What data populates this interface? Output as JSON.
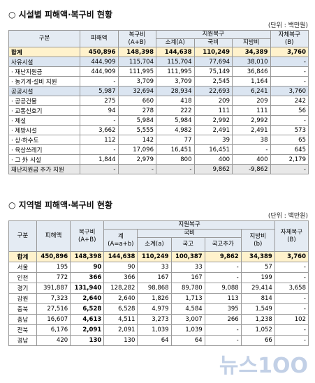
{
  "section1": {
    "title": "○ 시설별 피해액·복구비 현황",
    "unit": "(단위 : 백만원)",
    "header": {
      "category": "구분",
      "damage": "피해액",
      "recovery": "복구비",
      "recovery_sub": "(A+B)",
      "support": "지원복구",
      "subtotal": "소계(A)",
      "national": "국비",
      "local": "지방비",
      "self": "자체복구",
      "self_sub": "(B)"
    },
    "rows": [
      [
        "합계",
        "450,896",
        "148,398",
        "144,638",
        "110,249",
        "34,389",
        "3,760"
      ],
      [
        "사유시설",
        "444,909",
        "115,704",
        "115,704",
        "77,694",
        "38,010",
        "-"
      ],
      [
        "· 재난지원금",
        "444,909",
        "111,995",
        "111,995",
        "75,149",
        "36,846",
        "-"
      ],
      [
        "· 농기계·설비 지원",
        "-",
        "3,709",
        "3,709",
        "2,545",
        "1,164",
        "-"
      ],
      [
        "공공시설",
        "5,987",
        "32,694",
        "28,934",
        "22,693",
        "6,241",
        "3,760"
      ],
      [
        "· 공공건물",
        "275",
        "660",
        "418",
        "209",
        "209",
        "242"
      ],
      [
        "· 교통신호기",
        "94",
        "278",
        "222",
        "111",
        "111",
        "56"
      ],
      [
        "· 제설",
        "-",
        "5,984",
        "5,984",
        "2,992",
        "2,992",
        "-"
      ],
      [
        "· 제방시설",
        "3,662",
        "5,555",
        "4,982",
        "2,491",
        "2,491",
        "573"
      ],
      [
        "· 상·하수도",
        "112",
        "142",
        "77",
        "39",
        "38",
        "65"
      ],
      [
        "· 육상쓰레기",
        "-",
        "17,096",
        "16,451",
        "16,451",
        "-",
        "645"
      ],
      [
        "· 그 外 시설",
        "1,844",
        "2,979",
        "800",
        "400",
        "400",
        "2,179"
      ],
      [
        "재난지원금 추가 지원",
        "-",
        "-",
        "-",
        "9,862",
        "-9,862",
        "-"
      ]
    ]
  },
  "section2": {
    "title": "○ 지역별 피해액·복구비 현황",
    "unit": "(단위 : 백만원)",
    "header": {
      "category": "구분",
      "damage": "피해액",
      "recovery": "복구비",
      "recovery_sub": "(A+B)",
      "support": "지원복구",
      "total": "계",
      "total_sub": "(A=a+b)",
      "national": "국비",
      "subtotal": "소계(a)",
      "treasury": "국고",
      "treasury_extra": "국고추가",
      "local": "지방비",
      "local_sub": "(b)",
      "self": "자체복구",
      "self_sub": "(B)"
    },
    "rows": [
      [
        "합계",
        "450,896",
        "148,398",
        "144,638",
        "110,249",
        "100,387",
        "9,862",
        "34,389",
        "3,760"
      ],
      [
        "서울",
        "195",
        "90",
        "90",
        "33",
        "33",
        "-",
        "57",
        "-"
      ],
      [
        "인천",
        "772",
        "366",
        "366",
        "167",
        "167",
        "-",
        "199",
        "-"
      ],
      [
        "경기",
        "391,887",
        "131,940",
        "128,282",
        "98,868",
        "89,780",
        "9,088",
        "29,414",
        "3,658"
      ],
      [
        "강원",
        "7,323",
        "2,640",
        "2,640",
        "1,826",
        "1,713",
        "113",
        "814",
        "-"
      ],
      [
        "충북",
        "27,516",
        "6,528",
        "6,528",
        "4,979",
        "4,584",
        "395",
        "1,549",
        "-"
      ],
      [
        "충남",
        "16,607",
        "4,613",
        "4,511",
        "3,273",
        "3,007",
        "266",
        "1,238",
        "102"
      ],
      [
        "전북",
        "6,176",
        "2,091",
        "2,091",
        "1,039",
        "1,039",
        "-",
        "1,052",
        "-"
      ],
      [
        "경남",
        "420",
        "130",
        "130",
        "64",
        "64",
        "-",
        "66",
        "-"
      ]
    ]
  },
  "watermark": "뉴스1OO"
}
